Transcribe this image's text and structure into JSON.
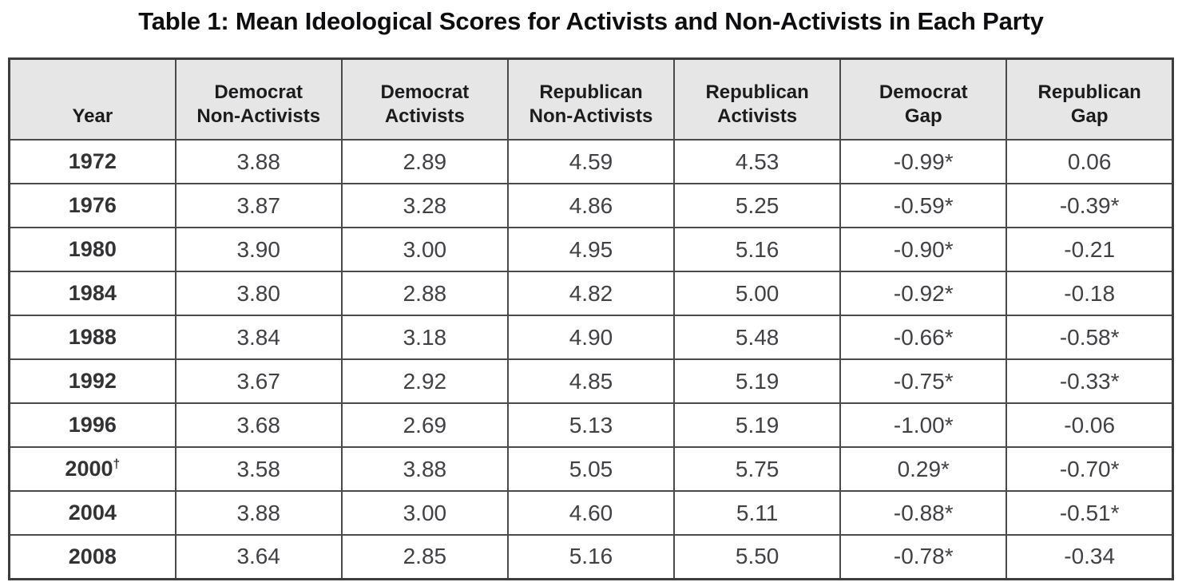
{
  "title": "Table 1: Mean Ideological Scores for Activists and Non-Activists in Each Party",
  "chart_data": {
    "type": "table",
    "title": "Table 1: Mean Ideological Scores for Activists and Non-Activists in Each Party",
    "columns": [
      "Year",
      "Democrat Non-Activists",
      "Democrat Activists",
      "Republican Non-Activists",
      "Republican Activists",
      "Democrat Gap",
      "Republican Gap"
    ],
    "rows": [
      [
        "1972",
        "3.88",
        "2.89",
        "4.59",
        "4.53",
        "-0.99*",
        "0.06"
      ],
      [
        "1976",
        "3.87",
        "3.28",
        "4.86",
        "5.25",
        "-0.59*",
        "-0.39*"
      ],
      [
        "1980",
        "3.90",
        "3.00",
        "4.95",
        "5.16",
        "-0.90*",
        "-0.21"
      ],
      [
        "1984",
        "3.80",
        "2.88",
        "4.82",
        "5.00",
        "-0.92*",
        "-0.18"
      ],
      [
        "1988",
        "3.84",
        "3.18",
        "4.90",
        "5.48",
        "-0.66*",
        "-0.58*"
      ],
      [
        "1992",
        "3.67",
        "2.92",
        "4.85",
        "5.19",
        "-0.75*",
        "-0.33*"
      ],
      [
        "1996",
        "3.68",
        "2.69",
        "5.13",
        "5.19",
        "-1.00*",
        "-0.06"
      ],
      [
        "2000†",
        "3.58",
        "3.88",
        "5.05",
        "5.75",
        "0.29*",
        "-0.70*"
      ],
      [
        "2004",
        "3.88",
        "3.00",
        "4.60",
        "5.11",
        "-0.88*",
        "-0.51*"
      ],
      [
        "2008",
        "3.64",
        "2.85",
        "5.16",
        "5.50",
        "-0.78*",
        "-0.34"
      ]
    ]
  },
  "table": {
    "header_lines": [
      [
        "Year"
      ],
      [
        "Democrat",
        "Non-Activists"
      ],
      [
        "Democrat",
        "Activists"
      ],
      [
        "Republican",
        "Non-Activists"
      ],
      [
        "Republican",
        "Activists"
      ],
      [
        "Democrat",
        "Gap"
      ],
      [
        "Republican",
        "Gap"
      ]
    ]
  },
  "styles": {
    "header_bg": "#e6e6e7",
    "border_color": "#4a4a4c",
    "title_color": "#0e0e10",
    "cell_text_color": "#414044"
  }
}
